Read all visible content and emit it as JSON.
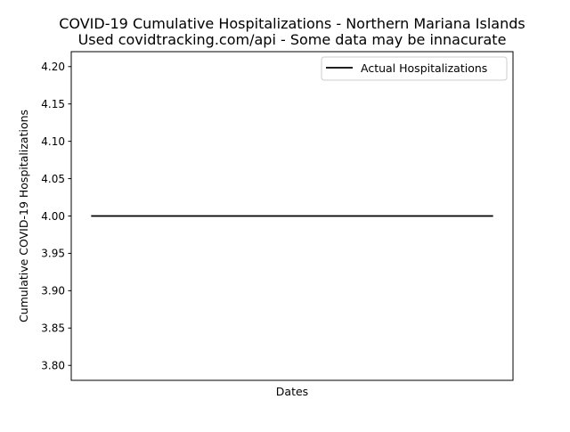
{
  "chart_data": {
    "type": "line",
    "title": "COVID-19 Cumulative Hospitalizations - Northern Mariana Islands",
    "subtitle": "Used covidtracking.com/api - Some data may be innacurate",
    "xlabel": "Dates",
    "ylabel": "Cumulative COVID-19 Hospitalizations",
    "ylim": [
      3.78,
      4.22
    ],
    "yticks": [
      "3.80",
      "3.85",
      "3.90",
      "3.95",
      "4.00",
      "4.05",
      "4.10",
      "4.15",
      "4.20"
    ],
    "xticks": [],
    "grid": false,
    "legend_position": "top-right",
    "series": [
      {
        "name": "Actual Hospitalizations",
        "color": "#000000",
        "values": [
          4,
          4
        ]
      }
    ]
  }
}
